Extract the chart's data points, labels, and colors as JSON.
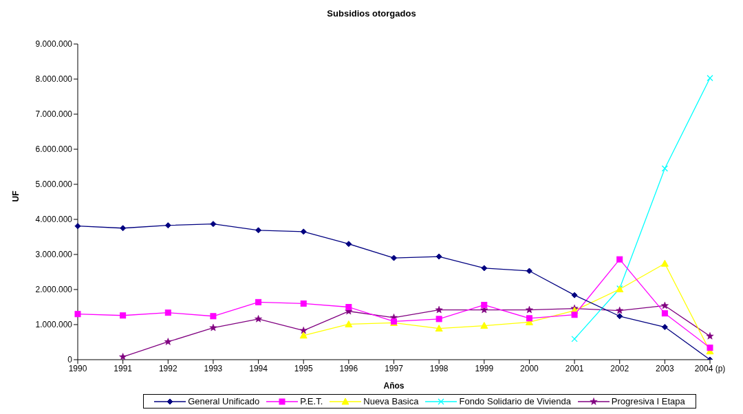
{
  "chart_data": {
    "type": "line",
    "title": "Subsidios otorgados",
    "xlabel": "Años",
    "ylabel": "UF",
    "categories": [
      "1990",
      "1991",
      "1992",
      "1993",
      "1994",
      "1995",
      "1996",
      "1997",
      "1998",
      "1999",
      "2000",
      "2001",
      "2002",
      "2003",
      "2004 (p)"
    ],
    "series": [
      {
        "name": "General Unificado",
        "color": "#000080",
        "marker": "diamond",
        "values": [
          3810000,
          3750000,
          3830000,
          3870000,
          3690000,
          3650000,
          3300000,
          2900000,
          2940000,
          2610000,
          2530000,
          1840000,
          1240000,
          930000,
          0
        ]
      },
      {
        "name": "P.E.T.",
        "color": "#ff00ff",
        "marker": "square",
        "values": [
          1300000,
          1260000,
          1340000,
          1240000,
          1640000,
          1600000,
          1500000,
          1090000,
          1160000,
          1560000,
          1180000,
          1280000,
          2860000,
          1320000,
          340000
        ]
      },
      {
        "name": "Nueva Basica",
        "color": "#ffff00",
        "marker": "triangle",
        "values": [
          null,
          null,
          null,
          null,
          null,
          690000,
          1010000,
          1050000,
          890000,
          970000,
          1070000,
          1400000,
          2010000,
          2740000,
          240000
        ]
      },
      {
        "name": "Fondo Solidario de Vivienda",
        "color": "#00ffff",
        "marker": "cross",
        "values": [
          null,
          null,
          null,
          null,
          null,
          null,
          null,
          null,
          null,
          null,
          null,
          590000,
          2030000,
          5450000,
          8030000
        ]
      },
      {
        "name": "Progresiva I Etapa",
        "color": "#800080",
        "marker": "star",
        "values": [
          null,
          80000,
          510000,
          910000,
          1160000,
          830000,
          1380000,
          1200000,
          1420000,
          1420000,
          1420000,
          1460000,
          1400000,
          1540000,
          670000
        ]
      }
    ],
    "ylim": [
      0,
      9000000
    ],
    "yticks": [
      0,
      {
        "value": 1000000,
        "label": "1.000.000"
      },
      {
        "value": 2000000,
        "label": "2.000.000"
      },
      {
        "value": 3000000,
        "label": "3.000.000"
      },
      {
        "value": 4000000,
        "label": "4.000.000"
      },
      {
        "value": 5000000,
        "label": "5.000.000"
      },
      {
        "value": 6000000,
        "label": "6.000.000"
      },
      {
        "value": 7000000,
        "label": "7.000.000"
      },
      {
        "value": 8000000,
        "label": "8.000.000"
      },
      {
        "value": 9000000,
        "label": "9.000.000"
      }
    ],
    "grid": false,
    "legend": "bottom",
    "line_style": "solid"
  }
}
